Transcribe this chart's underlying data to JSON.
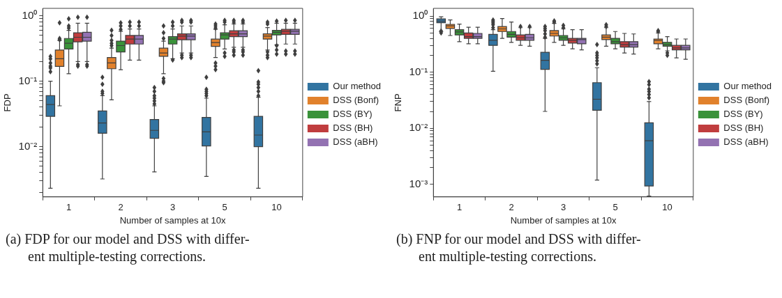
{
  "chart_data": [
    {
      "type": "box",
      "categories": [
        "1",
        "2",
        "3",
        "5",
        "10"
      ],
      "xlabel": "Number of samples at 10x",
      "ylabel": "FDP",
      "log": true,
      "grid": false,
      "legend": "right",
      "marker": "diamond",
      "ylim": [
        0.0017,
        1.3
      ],
      "yticks": [
        {
          "value": 0.002,
          "label": null
        },
        {
          "value": 0.003,
          "label": null
        },
        {
          "value": 0.004,
          "label": null
        },
        {
          "value": 0.005,
          "label": null
        },
        {
          "value": 0.006,
          "label": null
        },
        {
          "value": 0.007,
          "label": null
        },
        {
          "value": 0.008,
          "label": null
        },
        {
          "value": 0.009,
          "label": null
        },
        {
          "value": 0.01,
          "label": "10⁻²"
        },
        {
          "value": 0.02,
          "label": null
        },
        {
          "value": 0.03,
          "label": null
        },
        {
          "value": 0.04,
          "label": null
        },
        {
          "value": 0.05,
          "label": null
        },
        {
          "value": 0.06,
          "label": null
        },
        {
          "value": 0.07,
          "label": null
        },
        {
          "value": 0.08,
          "label": null
        },
        {
          "value": 0.09,
          "label": null
        },
        {
          "value": 0.1,
          "label": "10⁻¹"
        },
        {
          "value": 0.2,
          "label": null
        },
        {
          "value": 0.3,
          "label": null
        },
        {
          "value": 0.4,
          "label": null
        },
        {
          "value": 0.5,
          "label": null
        },
        {
          "value": 0.6,
          "label": null
        },
        {
          "value": 0.7,
          "label": null
        },
        {
          "value": 0.8,
          "label": null
        },
        {
          "value": 0.9,
          "label": null
        },
        {
          "value": 1,
          "label": "10⁰"
        }
      ],
      "annotations": [
        "(a) FDP for our model and DSS with differ-\nent multiple-testing corrections."
      ],
      "series": [
        {
          "name": "Our method",
          "color": "#3274a1",
          "boxes": [
            {
              "low": 0.0023,
              "q1": 0.029,
              "median": 0.044,
              "q3": 0.06,
              "high": 0.1,
              "outliers": [
                0.14,
                0.16,
                0.17,
                0.19,
                0.22,
                0.24
              ]
            },
            {
              "low": 0.0032,
              "q1": 0.016,
              "median": 0.023,
              "q3": 0.035,
              "high": 0.06,
              "outliers": [
                0.065,
                0.07,
                0.09,
                0.115
              ]
            },
            {
              "low": 0.0041,
              "q1": 0.0134,
              "median": 0.0177,
              "q3": 0.026,
              "high": 0.042,
              "outliers": [
                0.045,
                0.05,
                0.055,
                0.06,
                0.07,
                0.08
              ]
            },
            {
              "low": 0.0035,
              "q1": 0.0102,
              "median": 0.0168,
              "q3": 0.028,
              "high": 0.055,
              "outliers": [
                0.06,
                0.065,
                0.07,
                0.075,
                0.115
              ]
            },
            {
              "low": 0.0023,
              "q1": 0.01,
              "median": 0.015,
              "q3": 0.029,
              "high": 0.057,
              "outliers": [
                0.06,
                0.07,
                0.08,
                0.09,
                0.097,
                0.145
              ]
            }
          ]
        },
        {
          "name": "DSS (Bonf)",
          "color": "#e1812c",
          "boxes": [
            {
              "low": 0.042,
              "q1": 0.168,
              "median": 0.22,
              "q3": 0.3,
              "high": 0.42,
              "outliers": [
                0.43,
                0.45,
                0.78
              ]
            },
            {
              "low": 0.052,
              "q1": 0.155,
              "median": 0.19,
              "q3": 0.23,
              "high": 0.32,
              "outliers": [
                0.35,
                0.38,
                0.42,
                0.5,
                0.6
              ]
            },
            {
              "low": 0.13,
              "q1": 0.24,
              "median": 0.27,
              "q3": 0.32,
              "high": 0.41,
              "outliers": [
                0.095,
                0.1,
                0.11,
                0.45,
                0.55,
                0.7
              ]
            },
            {
              "low": 0.23,
              "q1": 0.34,
              "median": 0.39,
              "q3": 0.44,
              "high": 0.62,
              "outliers": [
                0.15,
                0.17,
                0.19,
                0.65,
                0.7,
                0.75
              ]
            },
            {
              "low": 0.3,
              "q1": 0.44,
              "median": 0.49,
              "q3": 0.53,
              "high": 0.66,
              "outliers": [
                0.23,
                0.25,
                0.28,
                0.75,
                0.8
              ]
            }
          ]
        },
        {
          "name": "DSS (BY)",
          "color": "#3a923a",
          "boxes": [
            {
              "low": 0.13,
              "q1": 0.31,
              "median": 0.38,
              "q3": 0.45,
              "high": 0.6,
              "outliers": [
                0.65,
                0.7,
                0.9
              ]
            },
            {
              "low": 0.15,
              "q1": 0.28,
              "median": 0.35,
              "q3": 0.41,
              "high": 0.58,
              "outliers": [
                0.62,
                0.7,
                0.78
              ]
            },
            {
              "low": 0.22,
              "q1": 0.37,
              "median": 0.44,
              "q3": 0.48,
              "high": 0.63,
              "outliers": [
                0.21,
                0.7,
                0.8
              ]
            },
            {
              "low": 0.31,
              "q1": 0.44,
              "median": 0.51,
              "q3": 0.55,
              "high": 0.73,
              "outliers": [
                0.24,
                0.27,
                0.8,
                0.85
              ]
            },
            {
              "low": 0.36,
              "q1": 0.51,
              "median": 0.56,
              "q3": 0.6,
              "high": 0.77,
              "outliers": [
                0.26,
                0.3,
                0.35,
                0.83
              ]
            }
          ]
        },
        {
          "name": "DSS (BH)",
          "color": "#c03d3e",
          "boxes": [
            {
              "low": 0.2,
              "q1": 0.4,
              "median": 0.47,
              "q3": 0.55,
              "high": 0.77,
              "outliers": [
                0.17,
                0.18,
                0.95
              ]
            },
            {
              "low": 0.21,
              "q1": 0.37,
              "median": 0.44,
              "q3": 0.5,
              "high": 0.63,
              "outliers": [
                0.7,
                0.8
              ]
            },
            {
              "low": 0.27,
              "q1": 0.43,
              "median": 0.49,
              "q3": 0.53,
              "high": 0.7,
              "outliers": [
                0.23,
                0.25,
                0.8,
                0.85
              ]
            },
            {
              "low": 0.33,
              "q1": 0.48,
              "median": 0.53,
              "q3": 0.59,
              "high": 0.75,
              "outliers": [
                0.25,
                0.28,
                0.3,
                0.8,
                0.85
              ]
            },
            {
              "low": 0.37,
              "q1": 0.52,
              "median": 0.58,
              "q3": 0.62,
              "high": 0.77,
              "outliers": [
                0.26,
                0.29,
                0.85
              ]
            }
          ]
        },
        {
          "name": "DSS (aBH)",
          "color": "#9372b2",
          "boxes": [
            {
              "low": 0.2,
              "q1": 0.41,
              "median": 0.47,
              "q3": 0.56,
              "high": 0.77,
              "outliers": [
                0.17,
                0.18,
                0.95
              ]
            },
            {
              "low": 0.21,
              "q1": 0.37,
              "median": 0.44,
              "q3": 0.5,
              "high": 0.63,
              "outliers": [
                0.7,
                0.8
              ]
            },
            {
              "low": 0.27,
              "q1": 0.43,
              "median": 0.49,
              "q3": 0.53,
              "high": 0.7,
              "outliers": [
                0.23,
                0.25,
                0.8,
                0.85
              ]
            },
            {
              "low": 0.33,
              "q1": 0.48,
              "median": 0.53,
              "q3": 0.59,
              "high": 0.75,
              "outliers": [
                0.25,
                0.28,
                0.3,
                0.8,
                0.85
              ]
            },
            {
              "low": 0.37,
              "q1": 0.52,
              "median": 0.58,
              "q3": 0.62,
              "high": 0.77,
              "outliers": [
                0.26,
                0.29,
                0.85
              ]
            }
          ]
        }
      ]
    },
    {
      "type": "box",
      "categories": [
        "1",
        "2",
        "3",
        "5",
        "10"
      ],
      "xlabel": "Number of samples at 10x",
      "ylabel": "FNP",
      "log": true,
      "grid": false,
      "legend": "right",
      "marker": "diamond",
      "ylim": [
        0.0006,
        1.37
      ],
      "yticks": [
        {
          "value": 0.001,
          "label": "10⁻³"
        },
        {
          "value": 0.002,
          "label": null
        },
        {
          "value": 0.003,
          "label": null
        },
        {
          "value": 0.004,
          "label": null
        },
        {
          "value": 0.005,
          "label": null
        },
        {
          "value": 0.006,
          "label": null
        },
        {
          "value": 0.007,
          "label": null
        },
        {
          "value": 0.008,
          "label": null
        },
        {
          "value": 0.009,
          "label": null
        },
        {
          "value": 0.01,
          "label": "10⁻²"
        },
        {
          "value": 0.02,
          "label": null
        },
        {
          "value": 0.03,
          "label": null
        },
        {
          "value": 0.04,
          "label": null
        },
        {
          "value": 0.05,
          "label": null
        },
        {
          "value": 0.06,
          "label": null
        },
        {
          "value": 0.07,
          "label": null
        },
        {
          "value": 0.08,
          "label": null
        },
        {
          "value": 0.09,
          "label": null
        },
        {
          "value": 0.1,
          "label": "10⁻¹"
        },
        {
          "value": 0.2,
          "label": null
        },
        {
          "value": 0.3,
          "label": null
        },
        {
          "value": 0.4,
          "label": null
        },
        {
          "value": 0.5,
          "label": null
        },
        {
          "value": 0.6,
          "label": null
        },
        {
          "value": 0.7,
          "label": null
        },
        {
          "value": 0.8,
          "label": null
        },
        {
          "value": 0.9,
          "label": null
        },
        {
          "value": 1,
          "label": "10⁰"
        }
      ],
      "annotations": [
        "(b) FNP for our model and DSS with differ-\nent multiple-testing corrections."
      ],
      "series": [
        {
          "name": "Our method",
          "color": "#3274a1",
          "boxes": [
            {
              "low": 0.53,
              "q1": 0.76,
              "median": 0.81,
              "q3": 0.89,
              "high": 0.97,
              "outliers": [
                0.5,
                0.54
              ]
            },
            {
              "low": 0.104,
              "q1": 0.3,
              "median": 0.37,
              "q3": 0.47,
              "high": 0.57,
              "outliers": [
                0.62,
                0.7,
                0.75,
                0.8,
                0.85
              ]
            },
            {
              "low": 0.02,
              "q1": 0.112,
              "median": 0.163,
              "q3": 0.226,
              "high": 0.4,
              "outliers": [
                0.42,
                0.48,
                0.55,
                0.6,
                0.65
              ]
            },
            {
              "low": 0.0012,
              "q1": 0.021,
              "median": 0.033,
              "q3": 0.065,
              "high": 0.12,
              "outliers": [
                0.14,
                0.16,
                0.18,
                0.2,
                0.22,
                0.31
              ]
            },
            {
              "low": 0.00062,
              "q1": 0.00094,
              "median": 0.006,
              "q3": 0.0125,
              "high": 0.03,
              "outliers": [
                0.035,
                0.04,
                0.045,
                0.05,
                0.06,
                0.068
              ]
            }
          ]
        },
        {
          "name": "DSS (Bonf)",
          "color": "#e1812c",
          "boxes": [
            {
              "low": 0.45,
              "q1": 0.6,
              "median": 0.67,
              "q3": 0.71,
              "high": 0.85
            },
            {
              "low": 0.4,
              "q1": 0.53,
              "median": 0.59,
              "q3": 0.65,
              "high": 0.9
            },
            {
              "low": 0.34,
              "q1": 0.44,
              "median": 0.49,
              "q3": 0.55,
              "high": 0.74,
              "outliers": [
                0.78,
                0.82
              ]
            },
            {
              "low": 0.29,
              "q1": 0.38,
              "median": 0.42,
              "q3": 0.46,
              "high": 0.62,
              "outliers": [
                0.65,
                0.7
              ]
            },
            {
              "low": 0.26,
              "q1": 0.32,
              "median": 0.37,
              "q3": 0.39,
              "high": 0.5,
              "outliers": [
                0.53,
                0.55
              ]
            }
          ]
        },
        {
          "name": "DSS (BY)",
          "color": "#3a923a",
          "boxes": [
            {
              "low": 0.35,
              "q1": 0.46,
              "median": 0.52,
              "q3": 0.57,
              "high": 0.72
            },
            {
              "low": 0.34,
              "q1": 0.42,
              "median": 0.47,
              "q3": 0.53,
              "high": 0.78
            },
            {
              "low": 0.3,
              "q1": 0.37,
              "median": 0.41,
              "q3": 0.45,
              "high": 0.59,
              "outliers": [
                0.62,
                0.68
              ]
            },
            {
              "low": 0.26,
              "q1": 0.32,
              "median": 0.35,
              "q3": 0.4,
              "high": 0.53
            },
            {
              "low": 0.24,
              "q1": 0.29,
              "median": 0.31,
              "q3": 0.34,
              "high": 0.43,
              "outliers": [
                0.2,
                0.22
              ]
            }
          ]
        },
        {
          "name": "DSS (BH)",
          "color": "#c03d3e",
          "boxes": [
            {
              "low": 0.32,
              "q1": 0.4,
              "median": 0.43,
              "q3": 0.5,
              "high": 0.63
            },
            {
              "low": 0.3,
              "q1": 0.37,
              "median": 0.41,
              "q3": 0.46,
              "high": 0.62,
              "outliers": [
                0.65
              ]
            },
            {
              "low": 0.26,
              "q1": 0.33,
              "median": 0.37,
              "q3": 0.4,
              "high": 0.57
            },
            {
              "low": 0.22,
              "q1": 0.28,
              "median": 0.31,
              "q3": 0.35,
              "high": 0.49
            },
            {
              "low": 0.18,
              "q1": 0.25,
              "median": 0.27,
              "q3": 0.3,
              "high": 0.39
            }
          ]
        },
        {
          "name": "DSS (aBH)",
          "color": "#9372b2",
          "boxes": [
            {
              "low": 0.32,
              "q1": 0.4,
              "median": 0.43,
              "q3": 0.49,
              "high": 0.63
            },
            {
              "low": 0.29,
              "q1": 0.37,
              "median": 0.41,
              "q3": 0.47,
              "high": 0.62,
              "outliers": [
                0.65
              ]
            },
            {
              "low": 0.25,
              "q1": 0.32,
              "median": 0.38,
              "q3": 0.4,
              "high": 0.57
            },
            {
              "low": 0.21,
              "q1": 0.28,
              "median": 0.31,
              "q3": 0.35,
              "high": 0.48
            },
            {
              "low": 0.17,
              "q1": 0.25,
              "median": 0.27,
              "q3": 0.3,
              "high": 0.39
            }
          ]
        }
      ]
    }
  ]
}
